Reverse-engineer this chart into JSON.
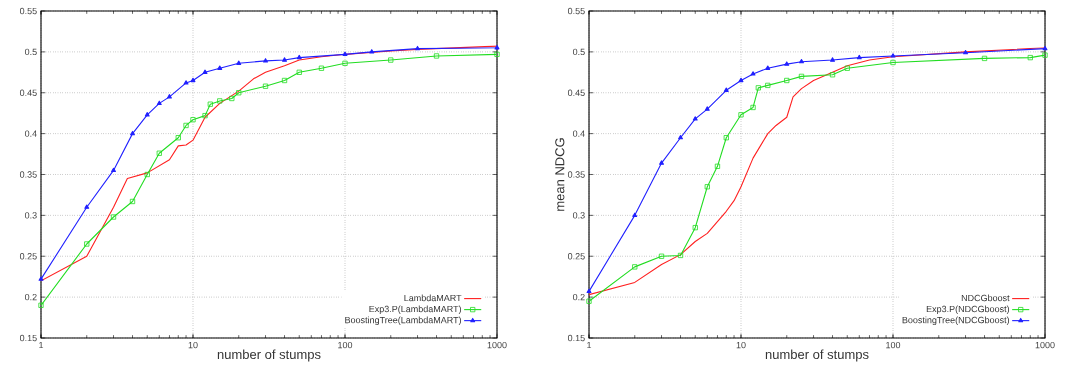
{
  "chart_data": [
    {
      "type": "line",
      "xlabel": "number of stumps",
      "log": "x",
      "xlim": [
        1,
        1000
      ],
      "xticks": [
        1,
        10,
        100,
        1000
      ],
      "ylim": [
        0.15,
        0.55
      ],
      "yticks": [
        0.15,
        0.2,
        0.25,
        0.3,
        0.35,
        0.4,
        0.45,
        0.5,
        0.55
      ],
      "grid": true,
      "legend": "bottom right",
      "line_style": "solid",
      "series": [
        {
          "name": "LambdaMART",
          "color": "#ff2020",
          "marker": "none",
          "x": [
            1,
            2,
            3,
            3.7,
            5,
            7,
            8,
            9,
            10,
            12,
            15,
            20,
            25,
            30,
            40,
            50,
            70,
            100,
            200,
            300,
            1000
          ],
          "values": [
            0.22,
            0.25,
            0.31,
            0.345,
            0.352,
            0.368,
            0.385,
            0.386,
            0.392,
            0.42,
            0.437,
            0.452,
            0.467,
            0.475,
            0.483,
            0.49,
            0.494,
            0.497,
            0.501,
            0.503,
            0.507
          ]
        },
        {
          "name": "Exp3.P(LambdaMART)",
          "color": "#22dd22",
          "marker": "square",
          "x": [
            1,
            2,
            3,
            4,
            5,
            6,
            8,
            9,
            10,
            12,
            13,
            15,
            18,
            20,
            30,
            40,
            50,
            70,
            100,
            200,
            400,
            1000
          ],
          "values": [
            0.19,
            0.265,
            0.298,
            0.317,
            0.35,
            0.376,
            0.395,
            0.41,
            0.417,
            0.422,
            0.436,
            0.44,
            0.443,
            0.45,
            0.458,
            0.465,
            0.475,
            0.48,
            0.486,
            0.49,
            0.495,
            0.497
          ]
        },
        {
          "name": "BoostingTree(LambdaMART)",
          "color": "#2020ff",
          "marker": "triangle",
          "x": [
            1,
            2,
            3,
            4,
            5,
            6,
            7,
            9,
            10,
            12,
            15,
            20,
            30,
            40,
            50,
            100,
            150,
            300,
            1000
          ],
          "values": [
            0.222,
            0.31,
            0.355,
            0.4,
            0.423,
            0.437,
            0.445,
            0.462,
            0.465,
            0.475,
            0.48,
            0.486,
            0.489,
            0.49,
            0.493,
            0.497,
            0.5,
            0.504,
            0.505
          ]
        }
      ]
    },
    {
      "type": "line",
      "xlabel": "number of stumps",
      "ylabel": "mean NDCG",
      "log": "x",
      "xlim": [
        1,
        1000
      ],
      "xticks": [
        1,
        10,
        100,
        1000
      ],
      "ylim": [
        0.15,
        0.55
      ],
      "yticks": [
        0.15,
        0.2,
        0.25,
        0.3,
        0.35,
        0.4,
        0.45,
        0.5,
        0.55
      ],
      "grid": true,
      "legend": "bottom right",
      "line_style": "solid",
      "series": [
        {
          "name": "NDCGboost",
          "color": "#ff2020",
          "marker": "none",
          "x": [
            1,
            2,
            3,
            4,
            5,
            6,
            8,
            9,
            10,
            12,
            15,
            17,
            20,
            22,
            25,
            30,
            40,
            50,
            70,
            100,
            300,
            1000
          ],
          "values": [
            0.203,
            0.218,
            0.24,
            0.252,
            0.268,
            0.278,
            0.305,
            0.318,
            0.335,
            0.37,
            0.4,
            0.41,
            0.42,
            0.445,
            0.455,
            0.465,
            0.475,
            0.483,
            0.49,
            0.494,
            0.5,
            0.505
          ]
        },
        {
          "name": "Exp3.P(NDCGboost)",
          "color": "#22dd22",
          "marker": "square",
          "x": [
            1,
            2,
            3,
            4,
            5,
            6,
            7,
            8,
            10,
            12,
            13,
            15,
            20,
            25,
            40,
            50,
            100,
            400,
            800,
            1000
          ],
          "values": [
            0.195,
            0.237,
            0.25,
            0.251,
            0.285,
            0.335,
            0.36,
            0.395,
            0.423,
            0.432,
            0.456,
            0.459,
            0.465,
            0.47,
            0.472,
            0.48,
            0.487,
            0.492,
            0.493,
            0.496
          ]
        },
        {
          "name": "BoostingTree(NDCGboost)",
          "color": "#2020ff",
          "marker": "triangle",
          "x": [
            1,
            2,
            3,
            4,
            5,
            6,
            8,
            10,
            12,
            15,
            20,
            25,
            40,
            60,
            100,
            300,
            1000
          ],
          "values": [
            0.207,
            0.3,
            0.364,
            0.395,
            0.418,
            0.43,
            0.453,
            0.465,
            0.473,
            0.48,
            0.485,
            0.488,
            0.49,
            0.493,
            0.495,
            0.499,
            0.504
          ]
        }
      ]
    }
  ]
}
